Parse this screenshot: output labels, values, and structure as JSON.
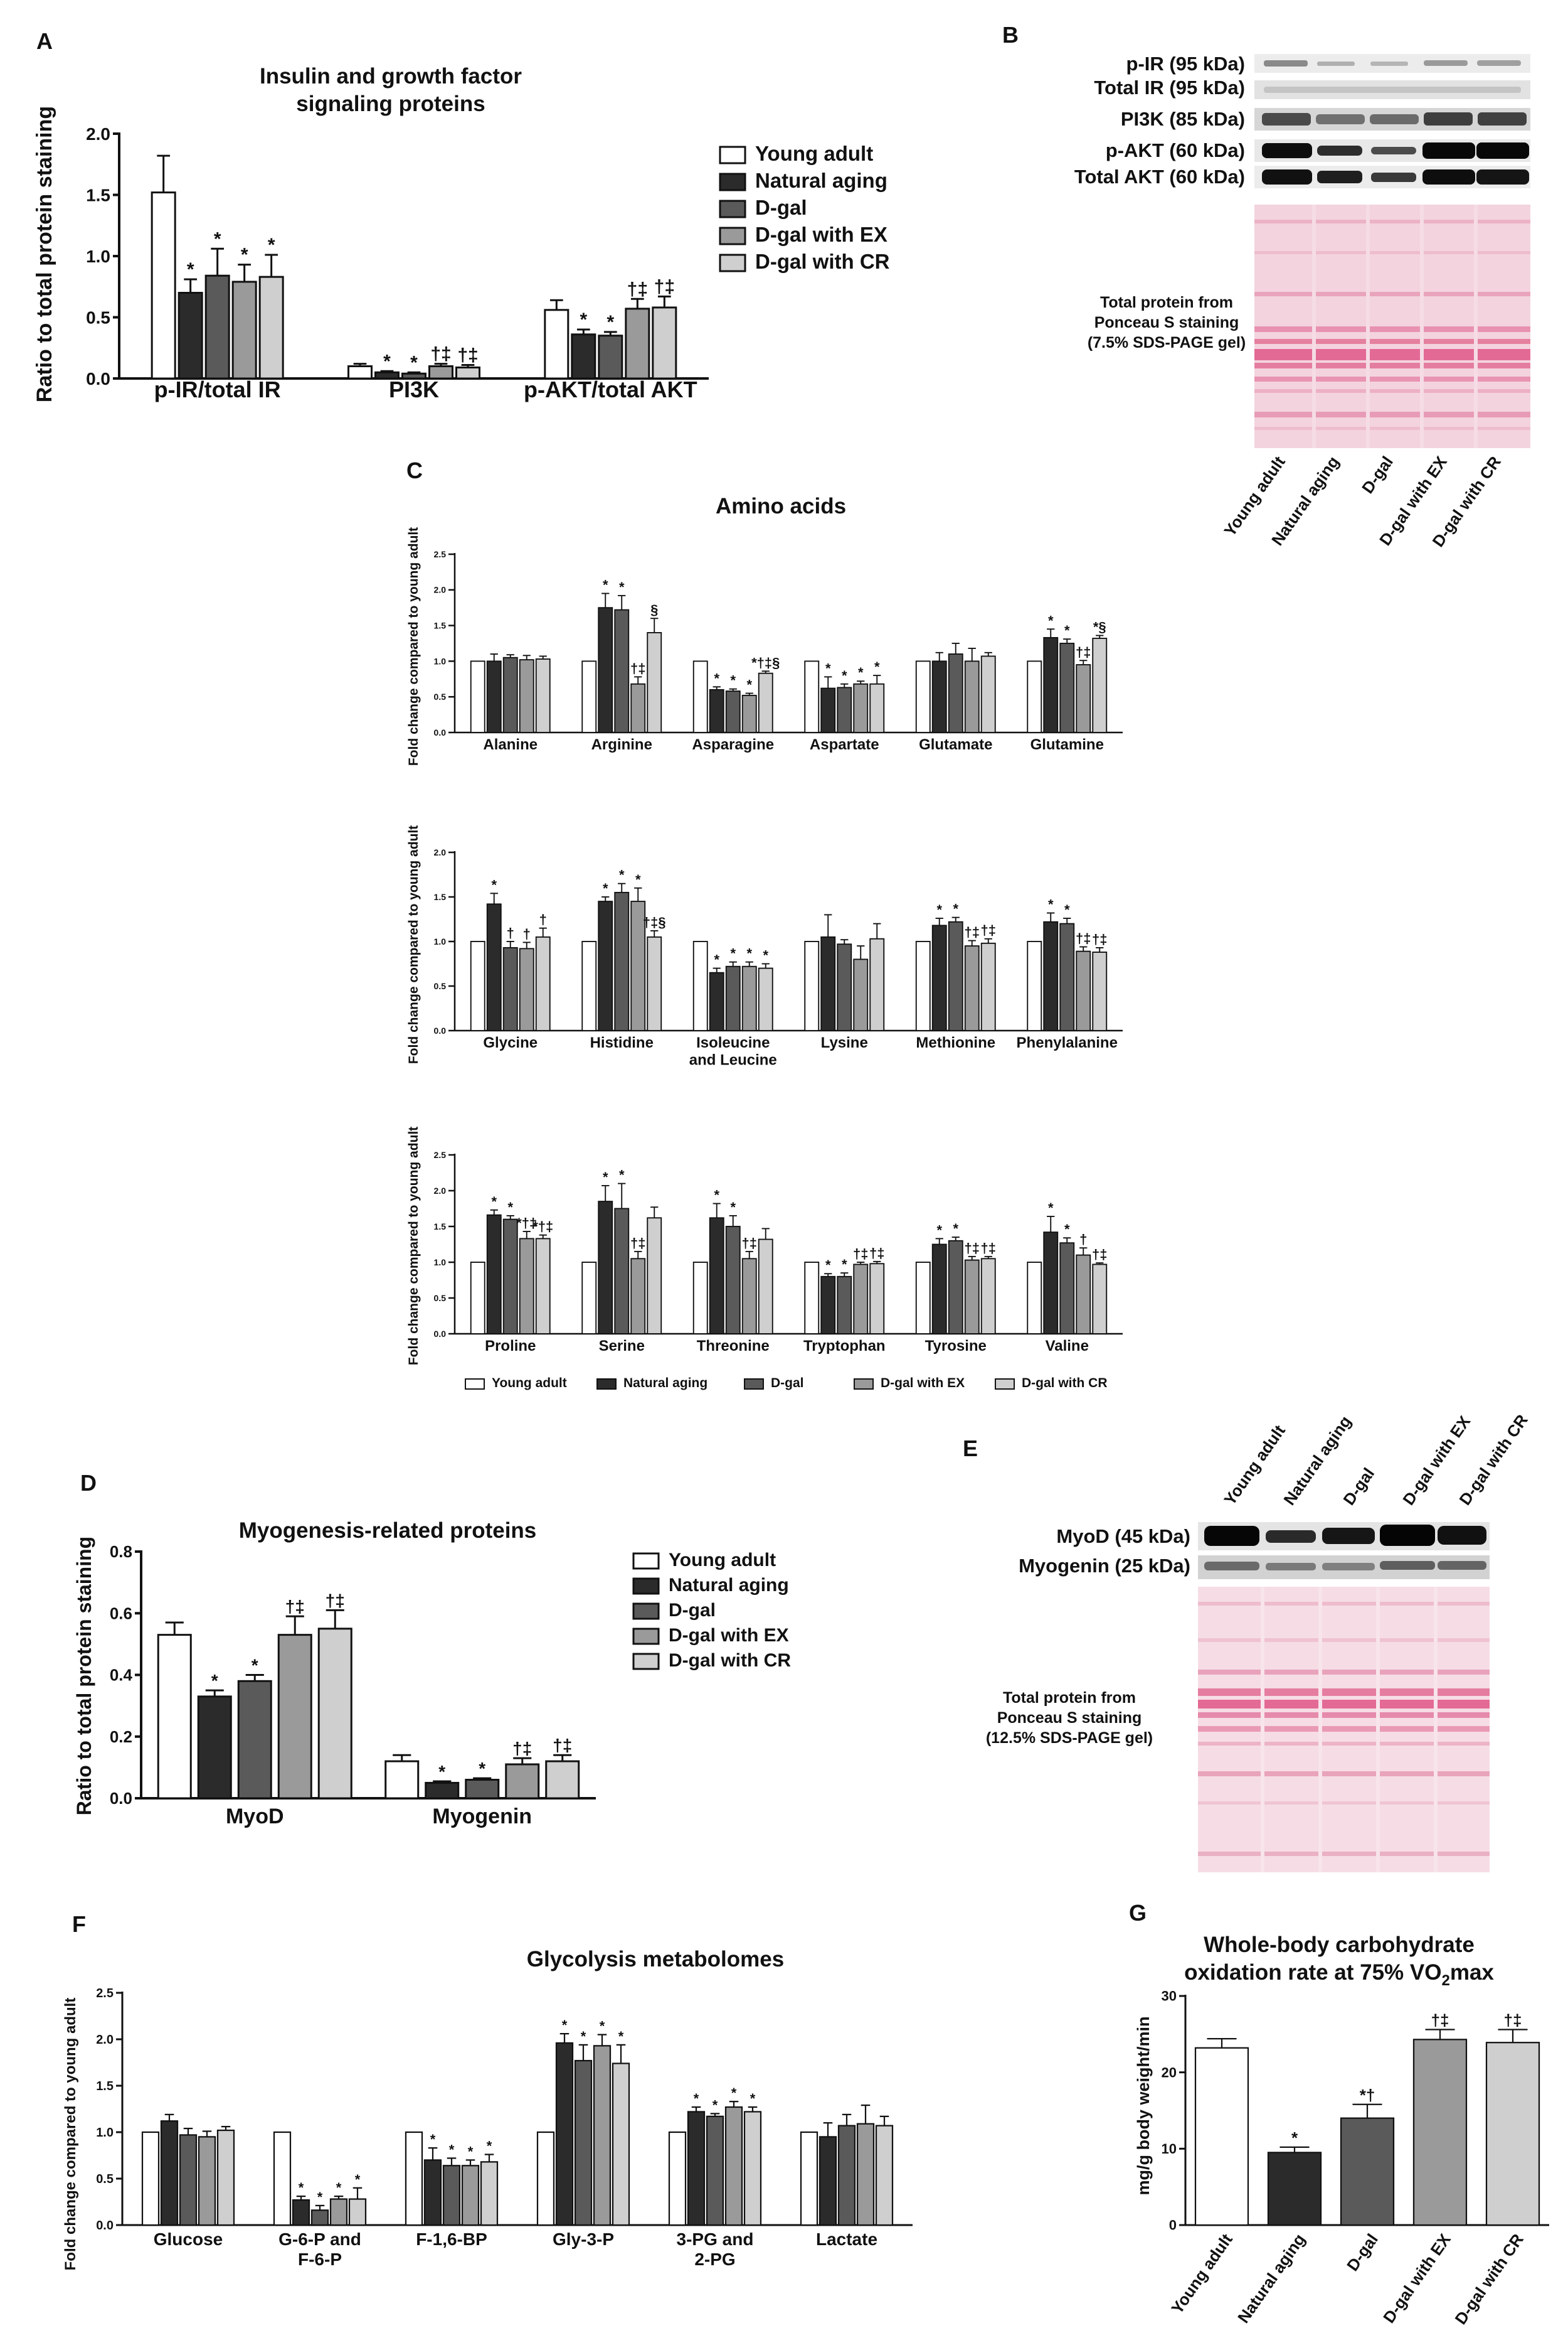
{
  "colors": {
    "young_adult": "#ffffff",
    "natural_aging": "#2b2b2b",
    "d_gal": "#5a5a5a",
    "d_gal_ex": "#9a9a9a",
    "d_gal_cr": "#cfcfcf",
    "ponceau_bg": "#f3d3de",
    "ponceau_band": "#e36a95"
  },
  "group_labels": [
    "Young adult",
    "Natural aging",
    "D-gal",
    "D-gal with EX",
    "D-gal with CR"
  ],
  "panels": {
    "A": {
      "letter": "A",
      "title_line1": "Insulin and growth factor",
      "title_line2": "signaling proteins",
      "ylabel": "Ratio to total protein staining"
    },
    "B": {
      "letter": "B",
      "blots": [
        "p-IR (95 kDa)",
        "Total IR (95 kDa)",
        "PI3K (85 kDa)",
        "p-AKT (60 kDa)",
        "Total AKT (60 kDa)"
      ],
      "stain_line1": "Total protein from",
      "stain_line2": "Ponceau S staining",
      "stain_line3": "(7.5% SDS-PAGE gel)"
    },
    "C": {
      "letter": "C",
      "title": "Amino acids",
      "ylabel": "Fold change compared to young adult"
    },
    "D": {
      "letter": "D",
      "title": "Myogenesis-related proteins",
      "ylabel": "Ratio to total protein staining"
    },
    "E": {
      "letter": "E",
      "blots": [
        "MyoD (45 kDa)",
        "Myogenin (25 kDa)"
      ],
      "stain_line1": "Total protein from",
      "stain_line2": "Ponceau S staining",
      "stain_line3": "(12.5% SDS-PAGE gel)"
    },
    "F": {
      "letter": "F",
      "title": "Glycolysis metabolomes",
      "ylabel": "Fold change compared to young adult"
    },
    "G": {
      "letter": "G",
      "title_line1": "Whole-body carbohydrate",
      "title_line2": "oxidation rate at 75% VO",
      "title_sub": "2",
      "title_tail": "max",
      "ylabel": "mg/g body weight/min"
    }
  },
  "chart_data": [
    {
      "id": "A",
      "type": "bar",
      "categories": [
        "p-IR/total IR",
        "PI3K",
        "p-AKT/total AKT"
      ],
      "ylim": [
        0,
        2.0
      ],
      "yticks": [
        "0.0",
        "0.5",
        "1.0",
        "1.5",
        "2.0"
      ],
      "legend": "right",
      "series": [
        {
          "name": "Young adult",
          "values": [
            1.52,
            0.1,
            0.56
          ],
          "errors": [
            0.3,
            0.02,
            0.08
          ],
          "marks": [
            "",
            "",
            ""
          ]
        },
        {
          "name": "Natural aging",
          "values": [
            0.7,
            0.05,
            0.36
          ],
          "errors": [
            0.11,
            0.01,
            0.04
          ],
          "marks": [
            "*",
            "*",
            "*"
          ]
        },
        {
          "name": "D-gal",
          "values": [
            0.84,
            0.04,
            0.35
          ],
          "errors": [
            0.22,
            0.01,
            0.03
          ],
          "marks": [
            "*",
            "*",
            "*"
          ]
        },
        {
          "name": "D-gal with EX",
          "values": [
            0.79,
            0.1,
            0.57
          ],
          "errors": [
            0.14,
            0.02,
            0.08
          ],
          "marks": [
            "*",
            "†‡",
            "†‡"
          ]
        },
        {
          "name": "D-gal with CR",
          "values": [
            0.83,
            0.09,
            0.58
          ],
          "errors": [
            0.18,
            0.02,
            0.09
          ],
          "marks": [
            "*",
            "†‡",
            "†‡"
          ]
        }
      ]
    },
    {
      "id": "C1",
      "type": "bar",
      "categories": [
        "Alanine",
        "Arginine",
        "Asparagine",
        "Aspartate",
        "Glutamate",
        "Glutamine"
      ],
      "ylim": [
        0,
        2.5
      ],
      "yticks": [
        "0.0",
        "0.5",
        "1.0",
        "1.5",
        "2.0",
        "2.5"
      ],
      "series": [
        {
          "name": "Young adult",
          "values": [
            1.0,
            1.0,
            1.0,
            1.0,
            1.0,
            1.0
          ],
          "errors": [
            0,
            0,
            0,
            0,
            0,
            0
          ],
          "marks": [
            "",
            "",
            "",
            "",
            "",
            ""
          ]
        },
        {
          "name": "Natural aging",
          "values": [
            1.0,
            1.75,
            0.6,
            0.62,
            1.0,
            1.33
          ],
          "errors": [
            0.1,
            0.2,
            0.04,
            0.16,
            0.12,
            0.12
          ],
          "marks": [
            "",
            "*",
            "*",
            "*",
            "",
            "*"
          ]
        },
        {
          "name": "D-gal",
          "values": [
            1.05,
            1.72,
            0.58,
            0.63,
            1.1,
            1.25
          ],
          "errors": [
            0.04,
            0.2,
            0.03,
            0.05,
            0.15,
            0.06
          ],
          "marks": [
            "",
            "*",
            "*",
            "*",
            "",
            "*"
          ]
        },
        {
          "name": "D-gal with EX",
          "values": [
            1.02,
            0.68,
            0.52,
            0.68,
            1.0,
            0.95
          ],
          "errors": [
            0.06,
            0.1,
            0.03,
            0.04,
            0.18,
            0.06
          ],
          "marks": [
            "",
            "†‡",
            "*",
            "*",
            "",
            "†‡"
          ]
        },
        {
          "name": "D-gal with CR",
          "values": [
            1.03,
            1.4,
            0.83,
            0.68,
            1.07,
            1.32
          ],
          "errors": [
            0.04,
            0.2,
            0.03,
            0.12,
            0.05,
            0.04
          ],
          "marks": [
            "",
            "§",
            "*†‡§",
            "*",
            "",
            "*§"
          ]
        }
      ]
    },
    {
      "id": "C2",
      "type": "bar",
      "categories": [
        "Glycine",
        "Histidine",
        "Isoleucine and Leucine",
        "Lysine",
        "Methionine",
        "Phenylalanine"
      ],
      "ylim": [
        0,
        2.0
      ],
      "yticks": [
        "0.0",
        "0.5",
        "1.0",
        "1.5",
        "2.0"
      ],
      "series": [
        {
          "name": "Young adult",
          "values": [
            1.0,
            1.0,
            1.0,
            1.0,
            1.0,
            1.0
          ],
          "errors": [
            0,
            0,
            0,
            0,
            0,
            0
          ],
          "marks": [
            "",
            "",
            "",
            "",
            "",
            ""
          ]
        },
        {
          "name": "Natural aging",
          "values": [
            1.42,
            1.45,
            0.65,
            1.05,
            1.18,
            1.22
          ],
          "errors": [
            0.12,
            0.05,
            0.05,
            0.25,
            0.08,
            0.1
          ],
          "marks": [
            "*",
            "*",
            "*",
            "",
            "*",
            "*"
          ]
        },
        {
          "name": "D-gal",
          "values": [
            0.93,
            1.55,
            0.72,
            0.97,
            1.22,
            1.2
          ],
          "errors": [
            0.07,
            0.1,
            0.05,
            0.05,
            0.05,
            0.06
          ],
          "marks": [
            "†",
            "*",
            "*",
            "",
            "*",
            "*"
          ]
        },
        {
          "name": "D-gal with EX",
          "values": [
            0.92,
            1.45,
            0.72,
            0.8,
            0.95,
            0.89
          ],
          "errors": [
            0.07,
            0.15,
            0.05,
            0.15,
            0.06,
            0.05
          ],
          "marks": [
            "†",
            "*",
            "*",
            "",
            "†‡",
            "†‡"
          ]
        },
        {
          "name": "D-gal with CR",
          "values": [
            1.05,
            1.05,
            0.7,
            1.03,
            0.98,
            0.88
          ],
          "errors": [
            0.1,
            0.07,
            0.05,
            0.17,
            0.05,
            0.05
          ],
          "marks": [
            "†",
            "†‡§",
            "*",
            "",
            "†‡",
            "†‡"
          ]
        }
      ]
    },
    {
      "id": "C3",
      "type": "bar",
      "categories": [
        "Proline",
        "Serine",
        "Threonine",
        "Tryptophan",
        "Tyrosine",
        "Valine"
      ],
      "ylim": [
        0,
        2.5
      ],
      "yticks": [
        "0.0",
        "0.5",
        "1.0",
        "1.5",
        "2.0",
        "2.5"
      ],
      "legend": "bottom",
      "series": [
        {
          "name": "Young adult",
          "values": [
            1.0,
            1.0,
            1.0,
            1.0,
            1.0,
            1.0
          ],
          "errors": [
            0,
            0,
            0,
            0,
            0,
            0
          ],
          "marks": [
            "",
            "",
            "",
            "",
            "",
            ""
          ]
        },
        {
          "name": "Natural aging",
          "values": [
            1.66,
            1.85,
            1.62,
            0.8,
            1.25,
            1.42
          ],
          "errors": [
            0.07,
            0.22,
            0.2,
            0.04,
            0.08,
            0.22
          ],
          "marks": [
            "*",
            "*",
            "*",
            "*",
            "*",
            "*"
          ]
        },
        {
          "name": "D-gal",
          "values": [
            1.6,
            1.75,
            1.5,
            0.8,
            1.3,
            1.27
          ],
          "errors": [
            0.05,
            0.35,
            0.15,
            0.05,
            0.05,
            0.07
          ],
          "marks": [
            "*",
            "*",
            "*",
            "*",
            "*",
            "*"
          ]
        },
        {
          "name": "D-gal with EX",
          "values": [
            1.33,
            1.05,
            1.05,
            0.97,
            1.03,
            1.1
          ],
          "errors": [
            0.1,
            0.1,
            0.1,
            0.03,
            0.05,
            0.1
          ],
          "marks": [
            "*†‡",
            "†‡",
            "†‡",
            "†‡",
            "†‡",
            "†"
          ]
        },
        {
          "name": "D-gal with CR",
          "values": [
            1.33,
            1.62,
            1.32,
            0.98,
            1.05,
            0.97
          ],
          "errors": [
            0.05,
            0.15,
            0.15,
            0.03,
            0.03,
            0.02
          ],
          "marks": [
            "*†‡",
            "",
            "",
            "†‡",
            "†‡",
            "†‡"
          ]
        }
      ]
    },
    {
      "id": "D",
      "type": "bar",
      "categories": [
        "MyoD",
        "Myogenin"
      ],
      "ylim": [
        0,
        0.8
      ],
      "yticks": [
        "0.0",
        "0.2",
        "0.4",
        "0.6",
        "0.8"
      ],
      "legend": "right",
      "series": [
        {
          "name": "Young adult",
          "values": [
            0.53,
            0.12
          ],
          "errors": [
            0.04,
            0.02
          ],
          "marks": [
            "",
            ""
          ]
        },
        {
          "name": "Natural aging",
          "values": [
            0.33,
            0.05
          ],
          "errors": [
            0.02,
            0.005
          ],
          "marks": [
            "*",
            "*"
          ]
        },
        {
          "name": "D-gal",
          "values": [
            0.38,
            0.06
          ],
          "errors": [
            0.02,
            0.005
          ],
          "marks": [
            "*",
            "*"
          ]
        },
        {
          "name": "D-gal with EX",
          "values": [
            0.53,
            0.11
          ],
          "errors": [
            0.06,
            0.02
          ],
          "marks": [
            "†‡",
            "†‡"
          ]
        },
        {
          "name": "D-gal with CR",
          "values": [
            0.55,
            0.12
          ],
          "errors": [
            0.06,
            0.02
          ],
          "marks": [
            "†‡",
            "†‡"
          ]
        }
      ]
    },
    {
      "id": "F",
      "type": "bar",
      "categories": [
        "Glucose",
        "G-6-P and F-6-P",
        "F-1,6-BP",
        "Gly-3-P",
        "3-PG and 2-PG",
        "Lactate"
      ],
      "ylim": [
        0,
        2.5
      ],
      "yticks": [
        "0.0",
        "0.5",
        "1.0",
        "1.5",
        "2.0",
        "2.5"
      ],
      "legend": "bottom",
      "series": [
        {
          "name": "Young adult",
          "values": [
            1.0,
            1.0,
            1.0,
            1.0,
            1.0,
            1.0
          ],
          "errors": [
            0,
            0,
            0,
            0,
            0,
            0
          ],
          "marks": [
            "",
            "",
            "",
            "",
            "",
            ""
          ]
        },
        {
          "name": "Natural aging",
          "values": [
            1.12,
            0.27,
            0.7,
            1.96,
            1.22,
            0.95
          ],
          "errors": [
            0.07,
            0.04,
            0.13,
            0.1,
            0.05,
            0.15
          ],
          "marks": [
            "",
            "*",
            "*",
            "*",
            "*",
            ""
          ]
        },
        {
          "name": "D-gal",
          "values": [
            0.97,
            0.16,
            0.64,
            1.77,
            1.17,
            1.07
          ],
          "errors": [
            0.07,
            0.05,
            0.08,
            0.17,
            0.03,
            0.12
          ],
          "marks": [
            "",
            "*",
            "*",
            "*",
            "*",
            ""
          ]
        },
        {
          "name": "D-gal with EX",
          "values": [
            0.95,
            0.28,
            0.64,
            1.93,
            1.27,
            1.09
          ],
          "errors": [
            0.06,
            0.03,
            0.06,
            0.12,
            0.06,
            0.2
          ],
          "marks": [
            "",
            "*",
            "*",
            "*",
            "*",
            ""
          ]
        },
        {
          "name": "D-gal with CR",
          "values": [
            1.02,
            0.28,
            0.68,
            1.74,
            1.22,
            1.07
          ],
          "errors": [
            0.04,
            0.12,
            0.08,
            0.2,
            0.05,
            0.1
          ],
          "marks": [
            "",
            "*",
            "*",
            "*",
            "*",
            ""
          ]
        }
      ]
    },
    {
      "id": "G",
      "type": "bar",
      "categories": [
        "Young adult",
        "Natural aging",
        "D-gal",
        "D-gal with EX",
        "D-gal with CR"
      ],
      "ylim": [
        0,
        30
      ],
      "yticks": [
        "0",
        "10",
        "20",
        "30"
      ],
      "series": [
        {
          "name": "Young adult",
          "values": [
            23.2,
            9.5,
            14.0,
            24.3,
            23.9
          ],
          "errors": [
            1.2,
            0.7,
            1.8,
            1.3,
            1.7
          ],
          "marks": [
            "",
            "*",
            "*†",
            "†‡",
            "†‡"
          ]
        }
      ]
    }
  ]
}
